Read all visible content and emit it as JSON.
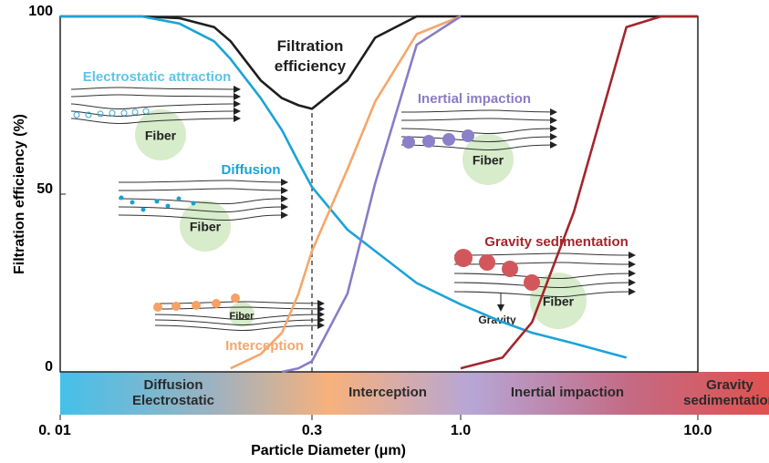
{
  "chart_data": {
    "type": "line",
    "xlabel": "Particle Diameter (μm)",
    "ylabel": "Filtration efficiency (%)",
    "x": [
      0.01,
      0.03,
      0.05,
      0.08,
      0.1,
      0.15,
      0.2,
      0.25,
      0.3,
      0.4,
      0.5,
      0.7,
      1,
      1.5,
      2,
      3,
      5,
      7,
      10
    ],
    "xlim": [
      0.01,
      10
    ],
    "log_x": true,
    "xticks": [
      {
        "value": 0.01,
        "label": "0. 01"
      },
      0.3,
      {
        "value": 1,
        "label": "1.0"
      },
      {
        "value": 10,
        "label": "10.0"
      }
    ],
    "ylim": [
      0,
      100
    ],
    "yticks": [
      0,
      50,
      100
    ],
    "series": [
      {
        "name": "Filtration efficiency",
        "color": "#1e1e1e",
        "values": [
          100,
          100,
          99.5,
          97,
          93,
          82,
          77,
          75,
          74,
          82,
          94,
          100,
          100,
          100,
          100,
          100,
          100,
          100,
          100
        ]
      },
      {
        "name": "Diffusion",
        "color": "#1ba3d8",
        "values": [
          100,
          100,
          98,
          93,
          88,
          77,
          68,
          59,
          52,
          40,
          34,
          25,
          19,
          14,
          11,
          8,
          4,
          null,
          null
        ]
      },
      {
        "name": "Interception",
        "color": "#f6a66a",
        "values": [
          null,
          null,
          null,
          null,
          1,
          5,
          11,
          22,
          34,
          57,
          76,
          95,
          100,
          null,
          null,
          null,
          null,
          null,
          null
        ]
      },
      {
        "name": "Inertial impaction",
        "color": "#8a7cc6",
        "values": [
          null,
          null,
          null,
          null,
          null,
          null,
          0,
          1,
          3,
          22,
          53,
          92,
          100,
          null,
          null,
          null,
          null,
          null,
          null
        ]
      },
      {
        "name": "Gravity sedimentation",
        "color": "#a3262b",
        "values": [
          null,
          null,
          null,
          null,
          null,
          null,
          null,
          null,
          null,
          null,
          null,
          null,
          1,
          4,
          14,
          45,
          97,
          100,
          100
        ]
      }
    ],
    "annotations": [
      "Electrostatic attraction",
      "Fiber",
      "Fiber",
      "Fiber",
      "Fiber",
      "Fiber",
      "Gravity"
    ],
    "regions": [
      "Diffusion",
      "Electrostatic",
      "Interception",
      "Inertial impaction",
      "Gravity",
      "sedimentation"
    ]
  }
}
